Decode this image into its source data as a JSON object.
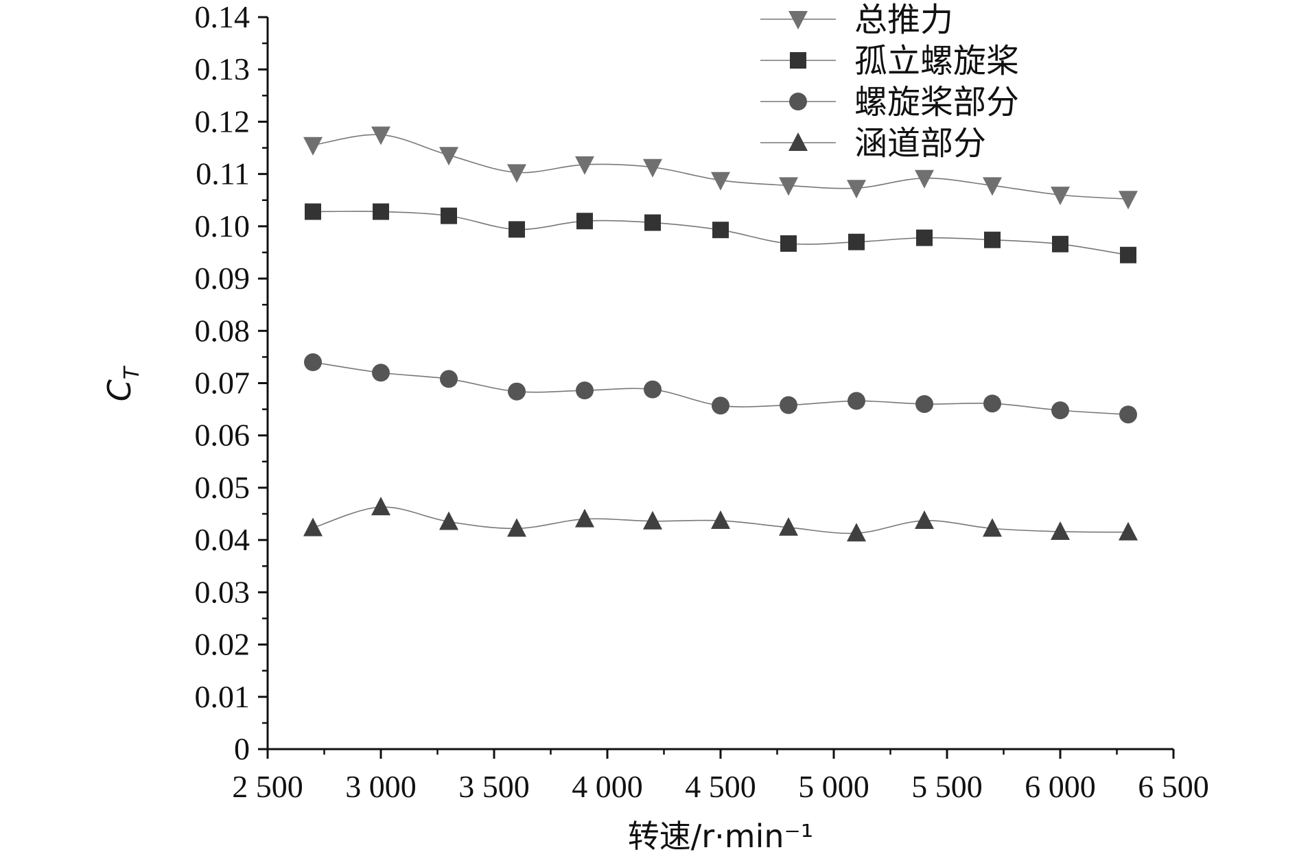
{
  "chart_data": {
    "type": "line",
    "xlabel": "转速/r·min⁻¹",
    "ylabel": "C_T",
    "ylabel_main": "C",
    "ylabel_sub": "T",
    "xlim": [
      2500,
      6500
    ],
    "ylim": [
      0,
      0.14
    ],
    "x_ticks": [
      2500,
      3000,
      3500,
      4000,
      4500,
      5000,
      5500,
      6000,
      6500
    ],
    "x_tick_labels": [
      "2 500",
      "3 000",
      "3 500",
      "4 000",
      "4 500",
      "5 000",
      "5 500",
      "6 000",
      "6 500"
    ],
    "y_ticks": [
      0,
      0.01,
      0.02,
      0.03,
      0.04,
      0.05,
      0.06,
      0.07,
      0.08,
      0.09,
      0.1,
      0.11,
      0.12,
      0.13,
      0.14
    ],
    "y_tick_labels": [
      "0",
      "0.01",
      "0.02",
      "0.03",
      "0.04",
      "0.05",
      "0.06",
      "0.07",
      "0.08",
      "0.09",
      "0.10",
      "0.11",
      "0.12",
      "0.13",
      "0.14"
    ],
    "legend_position": "top-right",
    "grid": false,
    "x": [
      2700,
      3000,
      3300,
      3600,
      3900,
      4200,
      4500,
      4800,
      5100,
      5400,
      5700,
      6000,
      6300
    ],
    "series": [
      {
        "name": "总推力",
        "marker": "triangle-down",
        "color": "#707070",
        "values": [
          0.1155,
          0.1175,
          0.1136,
          0.1103,
          0.1118,
          0.1113,
          0.1088,
          0.1078,
          0.1073,
          0.1092,
          0.1078,
          0.106,
          0.1052
        ]
      },
      {
        "name": "孤立螺旋桨",
        "marker": "square",
        "color": "#333333",
        "values": [
          0.1028,
          0.1028,
          0.102,
          0.0994,
          0.101,
          0.1007,
          0.0993,
          0.0967,
          0.097,
          0.0978,
          0.0974,
          0.0966,
          0.0945
        ]
      },
      {
        "name": "螺旋桨部分",
        "marker": "circle",
        "color": "#555555",
        "values": [
          0.074,
          0.072,
          0.0708,
          0.0684,
          0.0686,
          0.0688,
          0.0657,
          0.0658,
          0.0666,
          0.066,
          0.0661,
          0.0648,
          0.064
        ]
      },
      {
        "name": "涵道部分",
        "marker": "triangle-up",
        "color": "#404040",
        "values": [
          0.0423,
          0.0463,
          0.0435,
          0.0422,
          0.044,
          0.0436,
          0.0437,
          0.0424,
          0.0413,
          0.0437,
          0.0422,
          0.0416,
          0.0415
        ]
      }
    ]
  }
}
